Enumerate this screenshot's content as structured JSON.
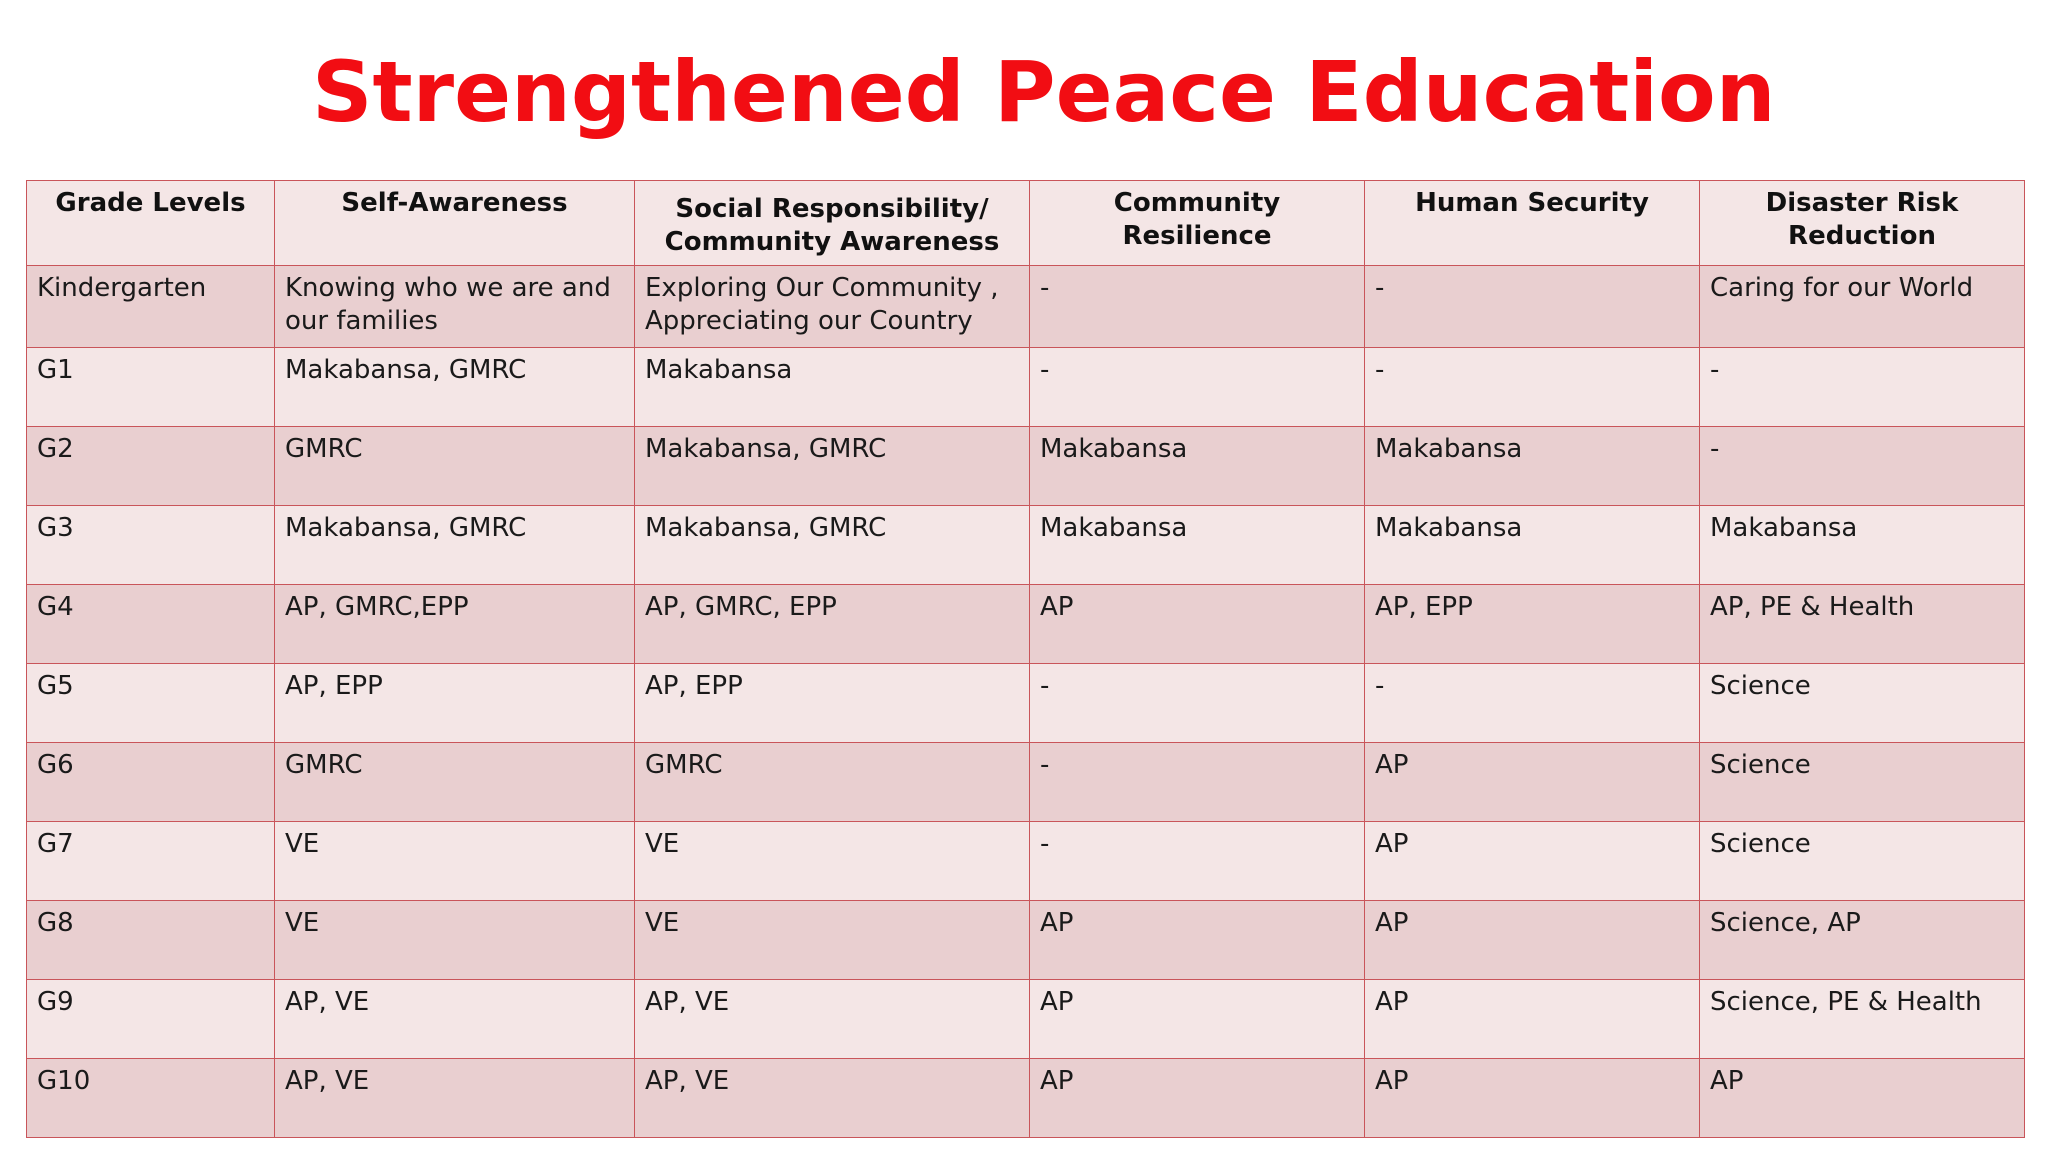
{
  "title": "Strengthened Peace Education",
  "table": {
    "headers": [
      "Grade Levels",
      "Self-Awareness",
      "Social Responsibility/ Community Awareness",
      "Community Resilience",
      "Human Security",
      "Disaster Risk Reduction"
    ],
    "rows": [
      [
        "Kindergarten",
        "Knowing who we are and our families",
        "Exploring Our Community , Appreciating our Country",
        "-",
        "-",
        "Caring for our World"
      ],
      [
        "G1",
        "Makabansa, GMRC",
        "Makabansa",
        "-",
        "-",
        "-"
      ],
      [
        "G2",
        "GMRC",
        "Makabansa, GMRC",
        "Makabansa",
        "Makabansa",
        "-"
      ],
      [
        "G3",
        "Makabansa, GMRC",
        "Makabansa, GMRC",
        "Makabansa",
        "Makabansa",
        "Makabansa"
      ],
      [
        "G4",
        "AP, GMRC,EPP",
        "AP, GMRC, EPP",
        "AP",
        "AP, EPP",
        "AP, PE & Health"
      ],
      [
        "G5",
        "AP, EPP",
        "AP, EPP",
        "-",
        "-",
        "Science"
      ],
      [
        "G6",
        "GMRC",
        "GMRC",
        "-",
        "AP",
        "Science"
      ],
      [
        "G7",
        "VE",
        "VE",
        "-",
        "AP",
        "Science"
      ],
      [
        "G8",
        "VE",
        "VE",
        "AP",
        "AP",
        "Science, AP"
      ],
      [
        "G9",
        "AP, VE",
        "AP, VE",
        "AP",
        "AP",
        "Science, PE & Health"
      ],
      [
        "G10",
        "AP, VE",
        "AP, VE",
        "AP",
        "AP",
        "AP"
      ]
    ]
  },
  "colors": {
    "title": "#f20d13",
    "border": "#c9555a",
    "row_dark": "#e9cfd0",
    "row_light": "#f4e6e6"
  }
}
